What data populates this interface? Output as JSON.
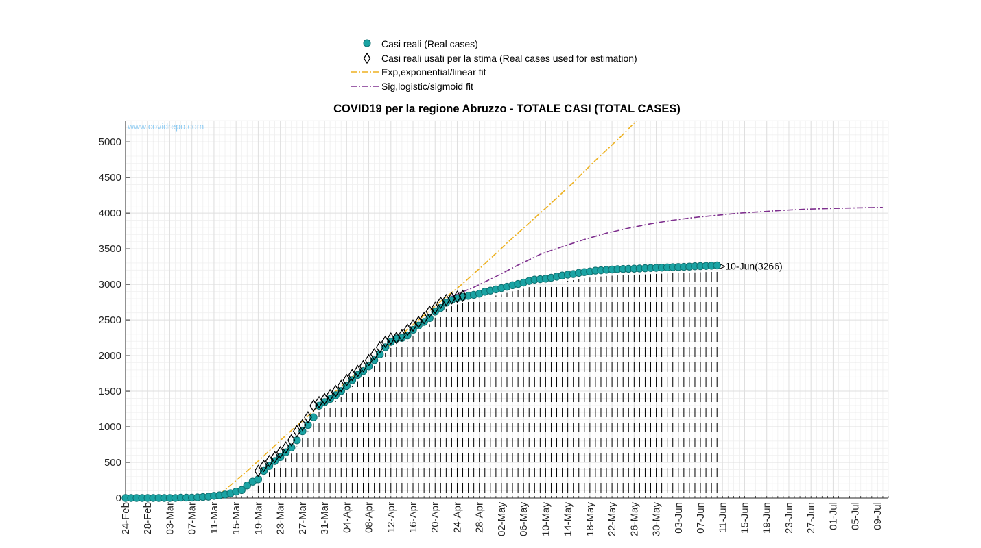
{
  "chart_data": {
    "type": "scatter",
    "title": "COVID19 per la regione Abruzzo - TOTALE CASI (TOTAL CASES)",
    "watermark": "www.covidrepo.com",
    "xlabel": "",
    "ylabel": "",
    "ylim": [
      0,
      5300
    ],
    "yticks": [
      0,
      500,
      1000,
      1500,
      2000,
      2500,
      3000,
      3500,
      4000,
      4500,
      5000
    ],
    "xticks": [
      "24-Feb",
      "28-Feb",
      "03-Mar",
      "07-Mar",
      "11-Mar",
      "15-Mar",
      "19-Mar",
      "23-Mar",
      "27-Mar",
      "31-Mar",
      "04-Apr",
      "08-Apr",
      "12-Apr",
      "16-Apr",
      "20-Apr",
      "24-Apr",
      "28-Apr",
      "02-May",
      "06-May",
      "10-May",
      "14-May",
      "18-May",
      "22-May",
      "26-May",
      "30-May",
      "03-Jun",
      "07-Jun",
      "11-Jun",
      "15-Jun",
      "19-Jun",
      "23-Jun",
      "27-Jun",
      "01-Jul",
      "05-Jul",
      "09-Jul"
    ],
    "x_start": "2020-02-24",
    "x_end": "2020-07-11",
    "grid": true,
    "legend_position": "top-center",
    "last_point_label": ">10-Jun(3266)",
    "series": [
      {
        "name": "Casi reali (Real cases)",
        "kind": "markers",
        "marker": "circle",
        "color": "#1aa3a3",
        "x": [
          "24-Feb",
          "25-Feb",
          "26-Feb",
          "27-Feb",
          "28-Feb",
          "29-Feb",
          "01-Mar",
          "02-Mar",
          "03-Mar",
          "04-Mar",
          "05-Mar",
          "06-Mar",
          "07-Mar",
          "08-Mar",
          "09-Mar",
          "10-Mar",
          "11-Mar",
          "12-Mar",
          "13-Mar",
          "14-Mar",
          "15-Mar",
          "16-Mar",
          "17-Mar",
          "18-Mar",
          "19-Mar",
          "20-Mar",
          "21-Mar",
          "22-Mar",
          "23-Mar",
          "24-Mar",
          "25-Mar",
          "26-Mar",
          "27-Mar",
          "28-Mar",
          "29-Mar",
          "30-Mar",
          "31-Mar",
          "01-Apr",
          "02-Apr",
          "03-Apr",
          "04-Apr",
          "05-Apr",
          "06-Apr",
          "07-Apr",
          "08-Apr",
          "09-Apr",
          "10-Apr",
          "11-Apr",
          "12-Apr",
          "13-Apr",
          "14-Apr",
          "15-Apr",
          "16-Apr",
          "17-Apr",
          "18-Apr",
          "19-Apr",
          "20-Apr",
          "21-Apr",
          "22-Apr",
          "23-Apr",
          "24-Apr",
          "25-Apr",
          "26-Apr",
          "27-Apr",
          "28-Apr",
          "29-Apr",
          "30-Apr",
          "01-May",
          "02-May",
          "03-May",
          "04-May",
          "05-May",
          "06-May",
          "07-May",
          "08-May",
          "09-May",
          "10-May",
          "11-May",
          "12-May",
          "13-May",
          "14-May",
          "15-May",
          "16-May",
          "17-May",
          "18-May",
          "19-May",
          "20-May",
          "21-May",
          "22-May",
          "23-May",
          "24-May",
          "25-May",
          "26-May",
          "27-May",
          "28-May",
          "29-May",
          "30-May",
          "31-May",
          "01-Jun",
          "02-Jun",
          "03-Jun",
          "04-Jun",
          "05-Jun",
          "06-Jun",
          "07-Jun",
          "08-Jun",
          "09-Jun",
          "10-Jun"
        ],
        "y": [
          0,
          0,
          0,
          0,
          0,
          0,
          0,
          0,
          0,
          0,
          5,
          5,
          5,
          9,
          14,
          18,
          30,
          38,
          49,
          67,
          89,
          112,
          176,
          229,
          262,
          380,
          450,
          519,
          574,
          642,
          709,
          811,
          938,
          1024,
          1133,
          1296,
          1347,
          1390,
          1443,
          1502,
          1573,
          1655,
          1727,
          1782,
          1850,
          1935,
          2018,
          2117,
          2193,
          2239,
          2249,
          2284,
          2361,
          2421,
          2472,
          2526,
          2617,
          2669,
          2742,
          2779,
          2804,
          2825,
          2839,
          2853,
          2869,
          2897,
          2913,
          2930,
          2948,
          2967,
          2988,
          3005,
          3025,
          3048,
          3066,
          3073,
          3080,
          3093,
          3108,
          3124,
          3136,
          3145,
          3161,
          3172,
          3181,
          3193,
          3197,
          3204,
          3208,
          3213,
          3216,
          3218,
          3220,
          3223,
          3226,
          3230,
          3232,
          3235,
          3239,
          3241,
          3243,
          3246,
          3249,
          3254,
          3256,
          3259,
          3262,
          3266
        ]
      },
      {
        "name": "Casi reali usati per la stima (Real cases used for estimation)",
        "kind": "markers",
        "marker": "diamond",
        "color": "#000000",
        "x": [
          "19-Mar",
          "20-Mar",
          "21-Mar",
          "22-Mar",
          "23-Mar",
          "24-Mar",
          "25-Mar",
          "26-Mar",
          "27-Mar",
          "28-Mar",
          "29-Mar",
          "30-Mar",
          "31-Mar",
          "01-Apr",
          "02-Apr",
          "03-Apr",
          "04-Apr",
          "05-Apr",
          "06-Apr",
          "07-Apr",
          "08-Apr",
          "09-Apr",
          "10-Apr",
          "11-Apr",
          "12-Apr",
          "13-Apr",
          "14-Apr",
          "15-Apr",
          "16-Apr",
          "17-Apr",
          "18-Apr",
          "19-Apr",
          "20-Apr",
          "21-Apr",
          "22-Apr",
          "23-Apr",
          "24-Apr",
          "25-Apr"
        ],
        "y": [
          380,
          450,
          519,
          574,
          642,
          709,
          811,
          938,
          1024,
          1133,
          1296,
          1347,
          1390,
          1443,
          1502,
          1573,
          1655,
          1727,
          1782,
          1850,
          1935,
          2018,
          2117,
          2193,
          2239,
          2249,
          2284,
          2361,
          2421,
          2472,
          2526,
          2617,
          2669,
          2742,
          2779,
          2804,
          2825,
          2839
        ]
      },
      {
        "name": "Exp,exponential/linear fit",
        "kind": "line",
        "dash": "dashdot",
        "color": "#edb120",
        "x": [
          "12-Mar",
          "16-Mar",
          "20-Mar",
          "24-Mar",
          "28-Mar",
          "01-Apr",
          "05-Apr",
          "09-Apr",
          "13-Apr",
          "17-Apr",
          "21-Apr",
          "25-Apr",
          "29-Apr",
          "03-May",
          "07-May",
          "11-May",
          "15-May",
          "19-May",
          "23-May",
          "27-May"
        ],
        "y": [
          50,
          310,
          590,
          880,
          1150,
          1430,
          1700,
          1960,
          2230,
          2500,
          2760,
          3010,
          3290,
          3580,
          3860,
          4140,
          4430,
          4740,
          5030,
          5340
        ]
      },
      {
        "name": "Sig,logistic/sigmoid fit",
        "kind": "line",
        "dash": "dashdot",
        "color": "#7e2f8e",
        "x": [
          "23-Apr",
          "27-Apr",
          "01-May",
          "05-May",
          "09-May",
          "13-May",
          "17-May",
          "21-May",
          "25-May",
          "29-May",
          "02-Jun",
          "06-Jun",
          "10-Jun",
          "14-Jun",
          "18-Jun",
          "22-Jun",
          "26-Jun",
          "30-Jun",
          "04-Jul",
          "08-Jul",
          "10-Jul"
        ],
        "y": [
          2830,
          2960,
          3110,
          3270,
          3420,
          3530,
          3630,
          3720,
          3790,
          3850,
          3900,
          3940,
          3970,
          4000,
          4020,
          4040,
          4055,
          4065,
          4072,
          4078,
          4080
        ]
      }
    ]
  }
}
